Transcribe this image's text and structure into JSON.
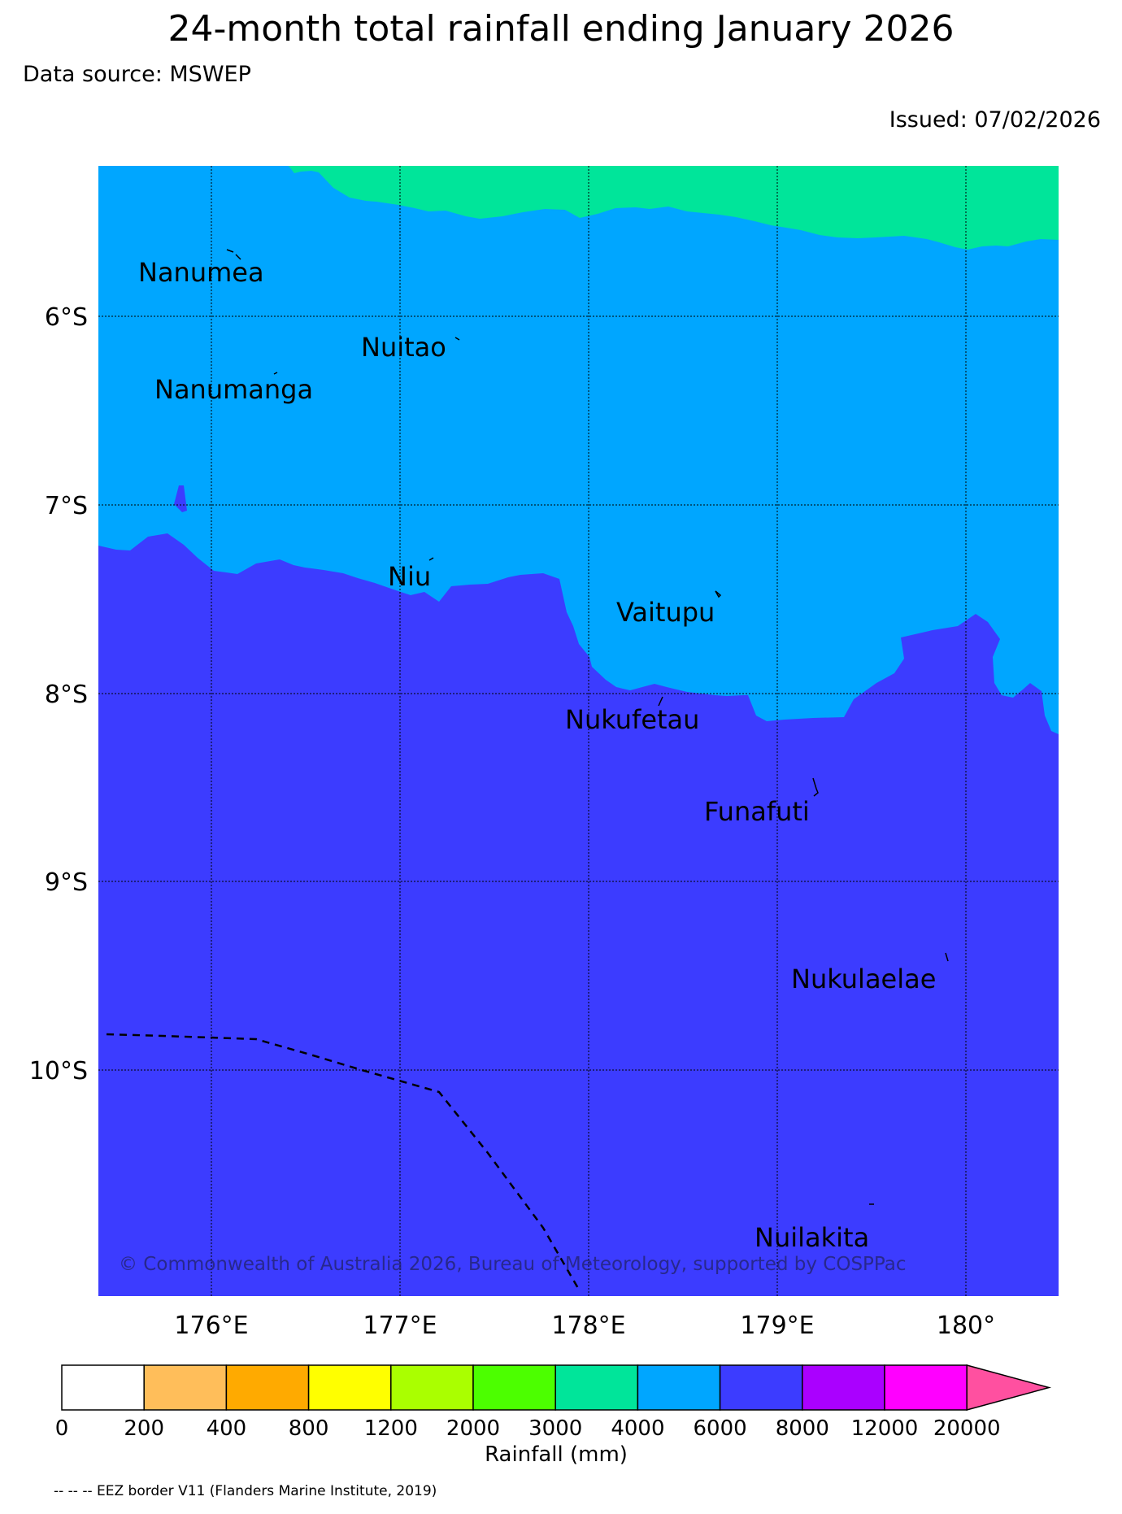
{
  "title": "24-month total rainfall ending January 2026",
  "data_source": "Data source: MSWEP",
  "issued": "Issued: 07/02/2026",
  "map": {
    "lat_labels": [
      "6°S",
      "7°S",
      "8°S",
      "9°S",
      "10°S"
    ],
    "lon_labels": [
      "176°E",
      "177°E",
      "178°E",
      "179°E",
      "180°"
    ],
    "islands": [
      "Nanumea",
      "Nuitao",
      "Nanumanga",
      "Niu",
      "Vaitupu",
      "Nukufetau",
      "Funafuti",
      "Nukulaelae",
      "Nuilakita"
    ],
    "copyright": "© Commonwealth of Australia 2026, Bureau of Meteorology, supported by COSPPac",
    "zone_colors": {
      "3000-4000": "#00e59a",
      "4000-6000": "#00a6ff",
      "6000-8000": "#3c3cff"
    }
  },
  "colorbar": {
    "label": "Rainfall (mm)",
    "ticks": [
      "0",
      "200",
      "400",
      "800",
      "1200",
      "2000",
      "3000",
      "4000",
      "6000",
      "8000",
      "12000",
      "20000"
    ],
    "colors": [
      "#ffffff",
      "#ffbe5a",
      "#ffaa00",
      "#ffff00",
      "#aaff00",
      "#4cff00",
      "#00e59a",
      "#00a6ff",
      "#3c3cff",
      "#aa00ff",
      "#ff00ff"
    ],
    "extend_color": "#ff50a0"
  },
  "footnote": "-- -- -- EEZ border V11 (Flanders Marine Institute, 2019)"
}
